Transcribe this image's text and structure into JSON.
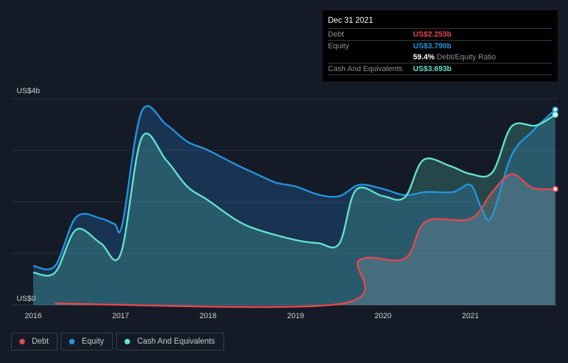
{
  "tooltip": {
    "date": "Dec 31 2021",
    "rows": [
      {
        "label": "Debt",
        "value": "US$2.253b"
      },
      {
        "label": "Equity",
        "value": "US$3.790b"
      },
      {
        "label": "",
        "value": "59.4%",
        "suffix": "Debt/Equity Ratio"
      },
      {
        "label": "Cash And Equivalents",
        "value": "US$3.693b"
      }
    ]
  },
  "legend": [
    {
      "label": "Debt"
    },
    {
      "label": "Equity"
    },
    {
      "label": "Cash And Equivalents"
    }
  ],
  "colors": {
    "debt": "#e5484d",
    "equity": "#2394df",
    "cash": "#62e3c9",
    "bg": "#151b26"
  },
  "chart_data": {
    "type": "area",
    "title": "",
    "xlabel": "",
    "ylabel": "",
    "ylim": [
      0,
      4
    ],
    "xlim": [
      2015.75,
      2022.0
    ],
    "y_tick_labels": [
      {
        "value": 4,
        "label": "US$4b"
      },
      {
        "value": 0,
        "label": "US$0"
      }
    ],
    "x_tick_labels": [
      "2016",
      "2017",
      "2018",
      "2019",
      "2020",
      "2021"
    ],
    "grid": true,
    "legend_position": "bottom-left",
    "series": [
      {
        "name": "Equity",
        "key": "equity",
        "points": [
          [
            2016.0,
            0.76
          ],
          [
            2016.25,
            0.76
          ],
          [
            2016.49,
            1.7
          ],
          [
            2016.77,
            1.68
          ],
          [
            2016.93,
            1.57
          ],
          [
            2017.02,
            1.57
          ],
          [
            2017.24,
            3.75
          ],
          [
            2017.52,
            3.5
          ],
          [
            2017.76,
            3.17
          ],
          [
            2018.0,
            3.0
          ],
          [
            2018.31,
            2.73
          ],
          [
            2018.55,
            2.54
          ],
          [
            2018.78,
            2.37
          ],
          [
            2019.0,
            2.3
          ],
          [
            2019.26,
            2.14
          ],
          [
            2019.5,
            2.11
          ],
          [
            2019.73,
            2.33
          ],
          [
            2020.0,
            2.25
          ],
          [
            2020.25,
            2.13
          ],
          [
            2020.49,
            2.19
          ],
          [
            2020.8,
            2.19
          ],
          [
            2021.0,
            2.33
          ],
          [
            2021.12,
            1.9
          ],
          [
            2021.24,
            1.7
          ],
          [
            2021.47,
            2.9
          ],
          [
            2021.71,
            3.37
          ],
          [
            2021.97,
            3.79
          ]
        ]
      },
      {
        "name": "Cash And Equivalents",
        "key": "cash",
        "points": [
          [
            2016.0,
            0.63
          ],
          [
            2016.25,
            0.63
          ],
          [
            2016.49,
            1.46
          ],
          [
            2016.77,
            1.2
          ],
          [
            2017.0,
            0.99
          ],
          [
            2017.24,
            3.24
          ],
          [
            2017.52,
            2.81
          ],
          [
            2017.76,
            2.3
          ],
          [
            2018.0,
            2.03
          ],
          [
            2018.31,
            1.66
          ],
          [
            2018.55,
            1.47
          ],
          [
            2019.0,
            1.26
          ],
          [
            2019.26,
            1.2
          ],
          [
            2019.5,
            1.19
          ],
          [
            2019.69,
            2.23
          ],
          [
            2020.0,
            2.11
          ],
          [
            2020.25,
            2.09
          ],
          [
            2020.46,
            2.81
          ],
          [
            2020.76,
            2.7
          ],
          [
            2021.0,
            2.54
          ],
          [
            2021.25,
            2.57
          ],
          [
            2021.47,
            3.46
          ],
          [
            2021.75,
            3.48
          ],
          [
            2021.97,
            3.69
          ]
        ]
      },
      {
        "name": "Debt",
        "key": "debt",
        "points": [
          [
            2016.25,
            0.03
          ],
          [
            2019.5,
            0.02
          ],
          [
            2019.73,
            0.87
          ],
          [
            2020.25,
            0.9
          ],
          [
            2020.49,
            1.62
          ],
          [
            2021.0,
            1.67
          ],
          [
            2021.24,
            2.17
          ],
          [
            2021.47,
            2.54
          ],
          [
            2021.71,
            2.27
          ],
          [
            2021.97,
            2.25
          ]
        ]
      }
    ]
  }
}
